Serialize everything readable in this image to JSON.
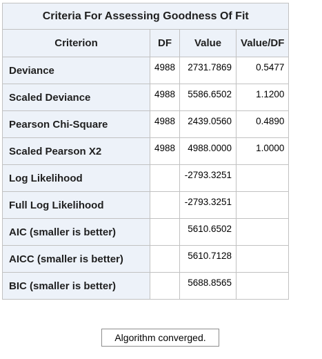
{
  "table": {
    "title": "Criteria For Assessing Goodness Of Fit",
    "headers": {
      "criterion": "Criterion",
      "df": "DF",
      "value": "Value",
      "value_df": "Value/DF"
    },
    "rows": [
      {
        "criterion": "Deviance",
        "df": "4988",
        "value": "2731.7869",
        "value_df": "0.5477"
      },
      {
        "criterion": "Scaled Deviance",
        "df": "4988",
        "value": "5586.6502",
        "value_df": "1.1200"
      },
      {
        "criterion": "Pearson Chi-Square",
        "df": "4988",
        "value": "2439.0560",
        "value_df": "0.4890"
      },
      {
        "criterion": "Scaled Pearson X2",
        "df": "4988",
        "value": "4988.0000",
        "value_df": "1.0000"
      },
      {
        "criterion": "Log Likelihood",
        "df": "",
        "value": "-2793.3251",
        "value_df": ""
      },
      {
        "criterion": "Full Log Likelihood",
        "df": "",
        "value": "-2793.3251",
        "value_df": ""
      },
      {
        "criterion": "AIC (smaller is better)",
        "df": "",
        "value": "5610.6502",
        "value_df": ""
      },
      {
        "criterion": "AICC (smaller is better)",
        "df": "",
        "value": "5610.7128",
        "value_df": ""
      },
      {
        "criterion": "BIC (smaller is better)",
        "df": "",
        "value": "5688.8565",
        "value_df": ""
      }
    ]
  },
  "note": "Algorithm converged."
}
